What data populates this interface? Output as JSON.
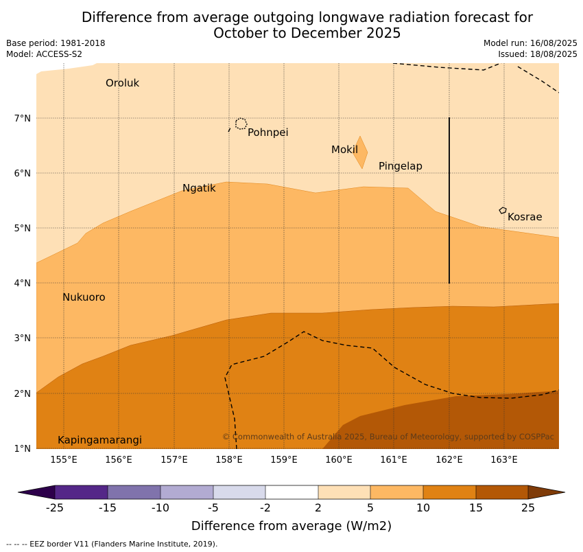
{
  "title": {
    "line1": "Difference from average outgoing longwave radiation forecast for",
    "line2": "October to December 2025"
  },
  "meta": {
    "base_period": "Base period: 1981-2018",
    "model": "Model: ACCESS-S2",
    "model_run": "Model run: 16/08/2025",
    "issued": "Issued: 18/08/2025"
  },
  "map": {
    "x_ticks": [
      "155°E",
      "156°E",
      "157°E",
      "158°E",
      "159°E",
      "160°E",
      "161°E",
      "162°E",
      "163°E"
    ],
    "y_ticks": [
      "7°N",
      "6°N",
      "5°N",
      "4°N",
      "3°N",
      "2°N",
      "1°N"
    ],
    "places": [
      {
        "name": "Oroluk"
      },
      {
        "name": "Pohnpei"
      },
      {
        "name": "Mokil"
      },
      {
        "name": "Pingelap"
      },
      {
        "name": "Ngatik"
      },
      {
        "name": "Kosrae"
      },
      {
        "name": "Nukuoro"
      },
      {
        "name": "Kapingamarangi"
      }
    ],
    "credit": "© Commonwealth of Australia 2025, Bureau of Meteorology, supported by COSPPac"
  },
  "colorbar": {
    "label": "Difference from average (W/m2)",
    "ticks": [
      "-25",
      "-15",
      "-10",
      "-5",
      "-2",
      "2",
      "5",
      "10",
      "15",
      "25"
    ],
    "colors": [
      "#542788",
      "#8073ac",
      "#b2abd2",
      "#d8daeb",
      "#ffffff",
      "#fee0b6",
      "#fdb863",
      "#e08214",
      "#b35806"
    ],
    "under_color": "#2d004b",
    "over_color": "#7f3b08"
  },
  "footer": "--  --  -- EEZ border V11 (Flanders Marine Institute, 2019)."
}
